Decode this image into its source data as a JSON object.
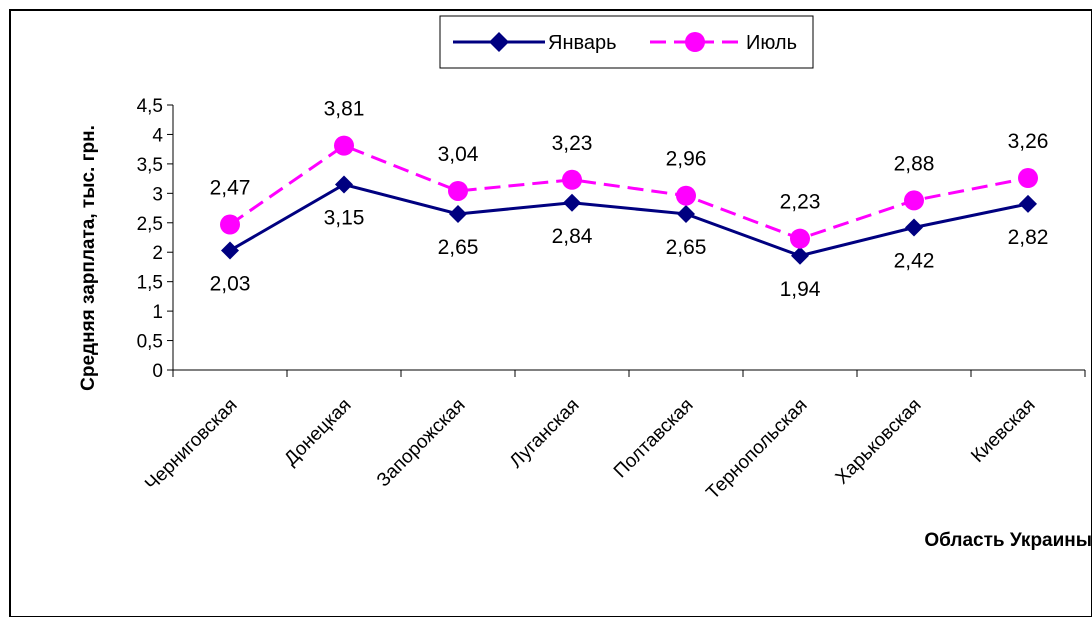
{
  "chart_data": {
    "type": "line",
    "categories": [
      "Черниговская",
      "Донецкая",
      "Запорожская",
      "Луганская",
      "Полтавская",
      "Тернопольская",
      "Харьковская",
      "Киевская"
    ],
    "series": [
      {
        "name": "Январь",
        "values": [
          2.03,
          3.15,
          2.65,
          2.84,
          2.65,
          1.94,
          2.42,
          2.82
        ],
        "labels": [
          "2,03",
          "3,15",
          "2,65",
          "2,84",
          "2,65",
          "1,94",
          "2,42",
          "2,82"
        ],
        "color": "#000080",
        "marker": "diamond",
        "dash": "solid"
      },
      {
        "name": "Июль",
        "values": [
          2.47,
          3.81,
          3.04,
          3.23,
          2.96,
          2.23,
          2.88,
          3.26
        ],
        "labels": [
          "2,47",
          "3,81",
          "3,04",
          "3,23",
          "2,96",
          "2,23",
          "2,88",
          "3,26"
        ],
        "color": "#ff00ff",
        "marker": "circle",
        "dash": "dashed"
      }
    ],
    "ylabel": "Средняя зарплата, тыс. грн.",
    "xlabel": "Область Украины",
    "ylim": [
      0,
      4.5
    ],
    "yticks": [
      0,
      0.5,
      1,
      1.5,
      2,
      2.5,
      3,
      3.5,
      4,
      4.5
    ],
    "ytick_labels": [
      "0",
      "0,5",
      "1",
      "1,5",
      "2",
      "2,5",
      "3",
      "3,5",
      "4",
      "4,5"
    ],
    "grid": false,
    "legend_position": "top-center"
  }
}
